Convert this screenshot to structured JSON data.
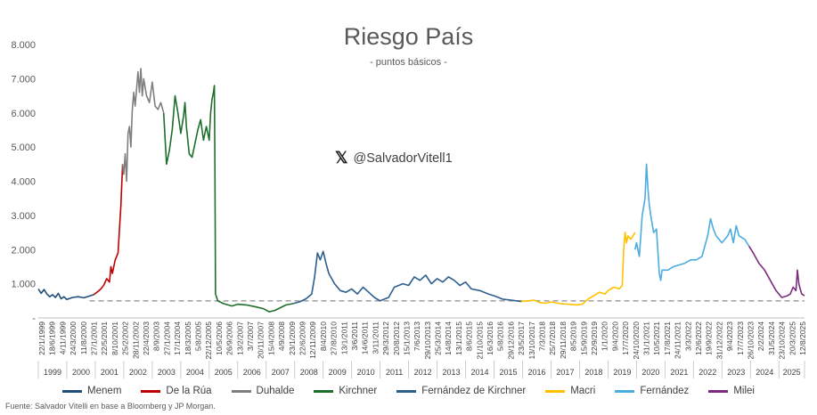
{
  "title": "Riesgo País",
  "subtitle": "- puntos básicos -",
  "handle": "@SalvadorVitell1",
  "source": "Fuente: Salvador Vitelli en base a Bloomberg y JP Morgan.",
  "icons": {
    "x_logo": "x-logo-icon"
  },
  "chart_data": {
    "type": "line",
    "title": "Riesgo País",
    "subtitle": "- puntos básicos -",
    "xlabel": "",
    "ylabel": "",
    "ylim": [
      0,
      8000
    ],
    "yticks": [
      0,
      1000,
      2000,
      3000,
      4000,
      5000,
      6000,
      7000,
      8000
    ],
    "ytick_labels": [
      "-",
      "1.000",
      "2.000",
      "3.000",
      "4.000",
      "5.000",
      "6.000",
      "7.000",
      "8.000"
    ],
    "x_start": 1999.0,
    "x_end": 2025.9,
    "grid": false,
    "legend_position": "bottom",
    "reference_line": {
      "value": 500,
      "style": "dashed",
      "color": "#A6A6A6",
      "from_x": 2000.8
    },
    "date_tick_labels": [
      "22/1/1999",
      "18/6/1999",
      "4/11/1999",
      "24/3/2000",
      "11/8/2000",
      "27/1/2001",
      "22/5/2001",
      "8/10/2001",
      "25/2/2002",
      "28/11/2002",
      "22/4/2003",
      "8/9/2003",
      "27/1/2004",
      "17/1/2004",
      "18/3/2005",
      "5/8/2005",
      "22/12/2005",
      "10/5/2006",
      "26/9/2006",
      "13/2/2007",
      "3/7/2007",
      "20/11/2007",
      "15/4/2008",
      "4/9/2008",
      "23/1/2009",
      "22/6/2009",
      "12/11/2009",
      "8/4/2010",
      "27/8/2010",
      "13/1/2011",
      "3/6/2011",
      "14/6/2011",
      "3/11/2011",
      "29/3/2012",
      "20/8/2012",
      "15/1/2013",
      "7/6/2013",
      "29/10/2013",
      "25/3/2014",
      "14/8/2014",
      "13/1/2015",
      "8/6/2015",
      "21/10/2015",
      "16/3/2016",
      "5/8/2016",
      "29/12/2016",
      "23/5/2017",
      "13/10/2017",
      "7/3/2018",
      "25/7/2018",
      "29/11/2018",
      "8/5/2019",
      "15/9/2019",
      "22/9/2019",
      "1/1/2020",
      "9/4/2020",
      "17/7/2020",
      "24/10/2020",
      "31/1/2021",
      "10/5/2021",
      "17/8/2021",
      "24/11/2021",
      "3/3/2022",
      "12/6/2022",
      "19/9/2022",
      "31/12/2022",
      "9/4/2023",
      "17/7/2023",
      "26/10/2023",
      "2/2/2024",
      "31/5/2024",
      "23/10/2024",
      "20/3/2025",
      "12/8/2025"
    ],
    "year_labels": [
      "1999",
      "2000",
      "2001",
      "2002",
      "2003",
      "2004",
      "2005",
      "2006",
      "2007",
      "2008",
      "2009",
      "2010",
      "2011",
      "2012",
      "2013",
      "2014",
      "2015",
      "2016",
      "2017",
      "2018",
      "2019",
      "2020",
      "2021",
      "2022",
      "2023",
      "2024",
      "2025"
    ],
    "series": [
      {
        "name": "Menem",
        "color": "#1F4E79",
        "x": [
          1999.0,
          1999.1,
          1999.2,
          1999.3,
          1999.4,
          1999.5,
          1999.6,
          1999.7,
          1999.8,
          1999.9,
          2000.0,
          2000.2,
          2000.4,
          2000.6,
          2000.8,
          2000.95
        ],
        "y": [
          850,
          720,
          830,
          700,
          620,
          680,
          600,
          720,
          560,
          620,
          540,
          600,
          620,
          590,
          640,
          680
        ]
      },
      {
        "name": "De la Rúa",
        "color": "#C00000",
        "x": [
          2000.95,
          2001.1,
          2001.2,
          2001.3,
          2001.4,
          2001.5,
          2001.55,
          2001.6,
          2001.7,
          2001.8,
          2001.85,
          2001.9,
          2001.96
        ],
        "y": [
          680,
          780,
          850,
          960,
          1150,
          1050,
          1500,
          1300,
          1700,
          1900,
          2600,
          3300,
          4500
        ]
      },
      {
        "name": "Duhalde",
        "color": "#7F7F7F",
        "x": [
          2001.96,
          2002.0,
          2002.05,
          2002.1,
          2002.15,
          2002.2,
          2002.25,
          2002.3,
          2002.35,
          2002.4,
          2002.5,
          2002.55,
          2002.6,
          2002.65,
          2002.7,
          2002.8,
          2002.9,
          2003.0,
          2003.1,
          2003.2,
          2003.3,
          2003.4
        ],
        "y": [
          4500,
          4200,
          4800,
          4000,
          5400,
          5600,
          5000,
          6100,
          6600,
          6200,
          7200,
          6600,
          7300,
          6500,
          7000,
          6500,
          6300,
          6900,
          6200,
          6100,
          6300,
          6000
        ]
      },
      {
        "name": "Kirchner",
        "color": "#1E6F2B",
        "x": [
          2003.4,
          2003.5,
          2003.6,
          2003.7,
          2003.8,
          2003.9,
          2004.0,
          2004.1,
          2004.15,
          2004.2,
          2004.3,
          2004.4,
          2004.5,
          2004.6,
          2004.7,
          2004.8,
          2004.9,
          2005.0,
          2005.05,
          2005.1,
          2005.15,
          2005.18,
          2005.2,
          2005.22,
          2005.3,
          2005.5,
          2005.8,
          2006.0,
          2006.3,
          2006.6,
          2006.9,
          2007.1,
          2007.3,
          2007.5,
          2007.7,
          2007.95
        ],
        "y": [
          6000,
          4500,
          4900,
          5500,
          6500,
          6000,
          5400,
          5900,
          6300,
          5600,
          4800,
          4700,
          5100,
          5500,
          5800,
          5200,
          5600,
          5200,
          6000,
          6400,
          6600,
          6800,
          4500,
          700,
          500,
          420,
          350,
          400,
          380,
          330,
          270,
          180,
          220,
          300,
          380,
          420
        ]
      },
      {
        "name": "Fernández de Kirchner",
        "color": "#2E5E8E",
        "x": [
          2007.95,
          2008.2,
          2008.4,
          2008.6,
          2008.7,
          2008.8,
          2008.85,
          2008.9,
          2009.0,
          2009.1,
          2009.2,
          2009.4,
          2009.6,
          2009.8,
          2010.0,
          2010.2,
          2010.4,
          2010.6,
          2010.8,
          2011.0,
          2011.3,
          2011.5,
          2011.8,
          2012.0,
          2012.2,
          2012.4,
          2012.6,
          2012.8,
          2013.0,
          2013.2,
          2013.4,
          2013.6,
          2013.8,
          2014.0,
          2014.2,
          2014.5,
          2014.8,
          2015.0,
          2015.3,
          2015.6,
          2015.95
        ],
        "y": [
          420,
          480,
          560,
          700,
          1200,
          1900,
          1800,
          1700,
          1950,
          1600,
          1300,
          1000,
          800,
          750,
          850,
          700,
          900,
          750,
          600,
          500,
          600,
          900,
          1000,
          950,
          1200,
          1100,
          1250,
          1000,
          1150,
          1050,
          1200,
          1100,
          950,
          1050,
          850,
          800,
          700,
          650,
          550,
          520,
          480
        ]
      },
      {
        "name": "Macri",
        "color": "#FFC000",
        "x": [
          2015.95,
          2016.2,
          2016.4,
          2016.6,
          2016.8,
          2017.0,
          2017.3,
          2017.6,
          2017.9,
          2018.1,
          2018.3,
          2018.5,
          2018.7,
          2018.9,
          2019.0,
          2019.2,
          2019.4,
          2019.5,
          2019.55,
          2019.6,
          2019.65,
          2019.7,
          2019.8,
          2019.95
        ],
        "y": [
          480,
          500,
          520,
          450,
          430,
          470,
          420,
          400,
          380,
          400,
          550,
          650,
          750,
          700,
          800,
          900,
          850,
          950,
          2000,
          2500,
          2200,
          2400,
          2300,
          2500
        ]
      },
      {
        "name": "Fernández",
        "color": "#4BACDF",
        "x": [
          2019.95,
          2020.0,
          2020.1,
          2020.2,
          2020.3,
          2020.35,
          2020.4,
          2020.45,
          2020.5,
          2020.6,
          2020.7,
          2020.8,
          2020.85,
          2020.9,
          2021.1,
          2021.3,
          2021.5,
          2021.7,
          2021.9,
          2022.1,
          2022.3,
          2022.5,
          2022.6,
          2022.7,
          2022.8,
          2023.0,
          2023.2,
          2023.3,
          2023.4,
          2023.5,
          2023.6,
          2023.8,
          2023.95
        ],
        "y": [
          2000,
          2200,
          1800,
          3000,
          3500,
          4500,
          3800,
          3300,
          3000,
          2500,
          2600,
          1300,
          1100,
          1400,
          1400,
          1500,
          1550,
          1600,
          1700,
          1700,
          1800,
          2400,
          2900,
          2600,
          2400,
          2200,
          2400,
          2600,
          2200,
          2700,
          2400,
          2300,
          2100
        ]
      },
      {
        "name": "Milei",
        "color": "#7B2C7F",
        "x": [
          2023.95,
          2024.1,
          2024.3,
          2024.5,
          2024.7,
          2024.9,
          2025.1,
          2025.3,
          2025.4,
          2025.5,
          2025.6,
          2025.65,
          2025.7,
          2025.8,
          2025.9
        ],
        "y": [
          2100,
          1900,
          1600,
          1400,
          1100,
          800,
          600,
          650,
          700,
          900,
          800,
          1400,
          1000,
          700,
          650
        ]
      }
    ]
  }
}
